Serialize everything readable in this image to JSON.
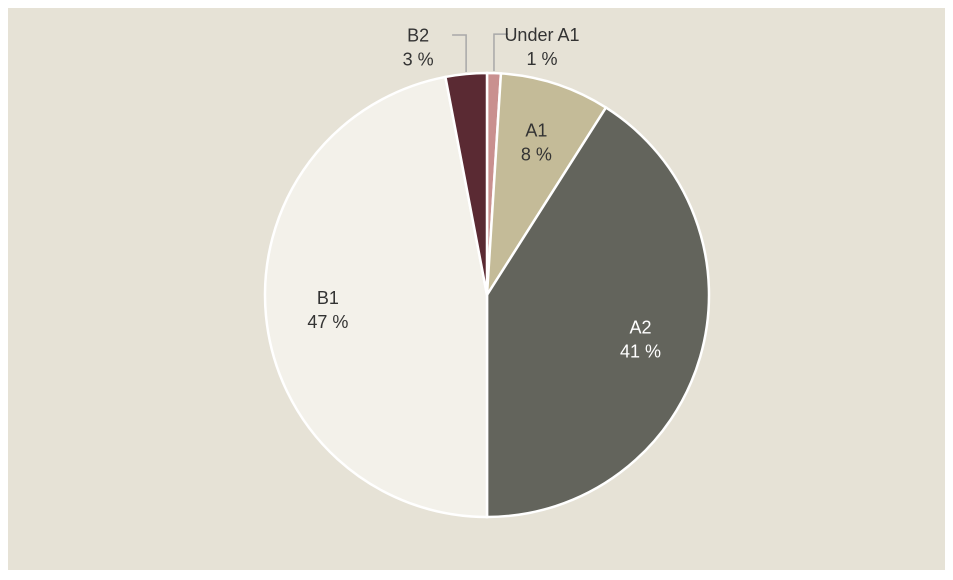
{
  "chart_data": {
    "type": "pie",
    "categories": [
      "Under A1",
      "A1",
      "A2",
      "B1",
      "B2"
    ],
    "values": [
      1,
      8,
      41,
      47,
      3
    ],
    "value_labels": [
      "1 %",
      "8 %",
      "41 %",
      "47 %",
      "3 %"
    ],
    "colors": [
      "#c9908f",
      "#c4bb98",
      "#63645c",
      "#f3f1ea",
      "#5a2a33"
    ]
  }
}
